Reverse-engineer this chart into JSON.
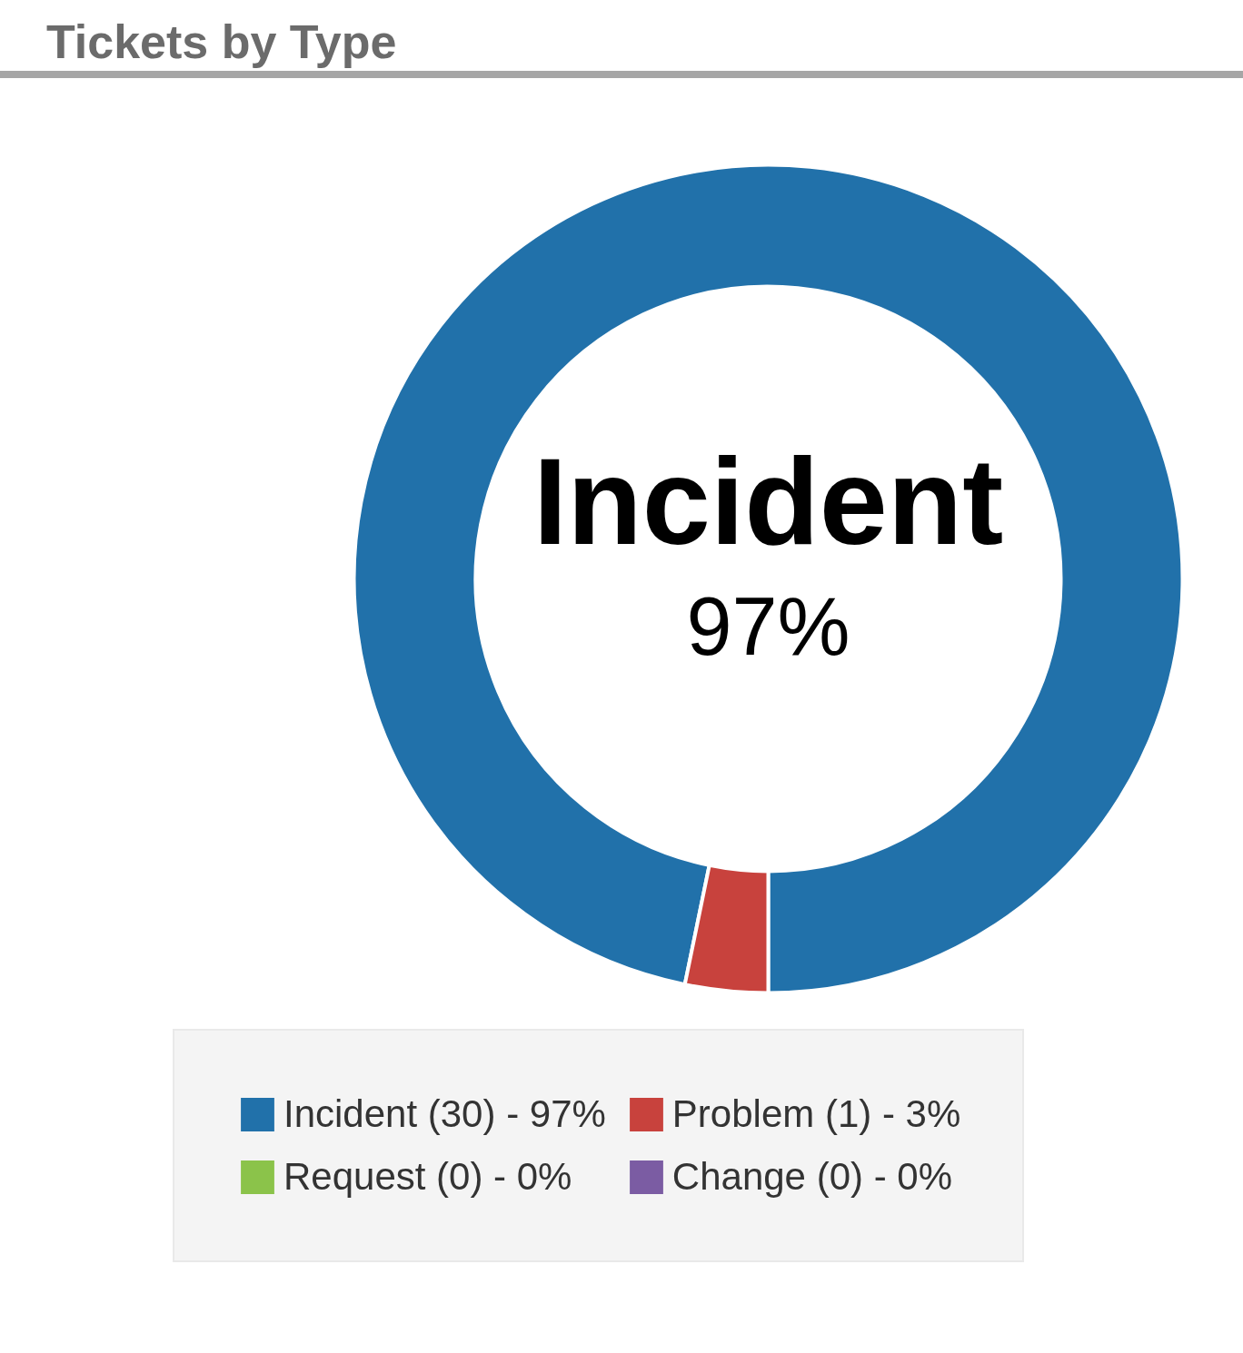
{
  "chart_data": {
    "type": "donut",
    "title": "Tickets by Type",
    "categories": [
      "Incident (30) - 97%",
      "Problem (1) - 3%",
      "Request (0) - 0%",
      "Change (0) - 0%"
    ],
    "values": [
      30,
      1,
      0,
      0
    ],
    "colors": [
      "#2171aa",
      "#c8423d",
      "#8bc34a",
      "#7b5ca3"
    ],
    "annotations": [
      "Incident",
      "97%"
    ],
    "legend": "bottom"
  }
}
